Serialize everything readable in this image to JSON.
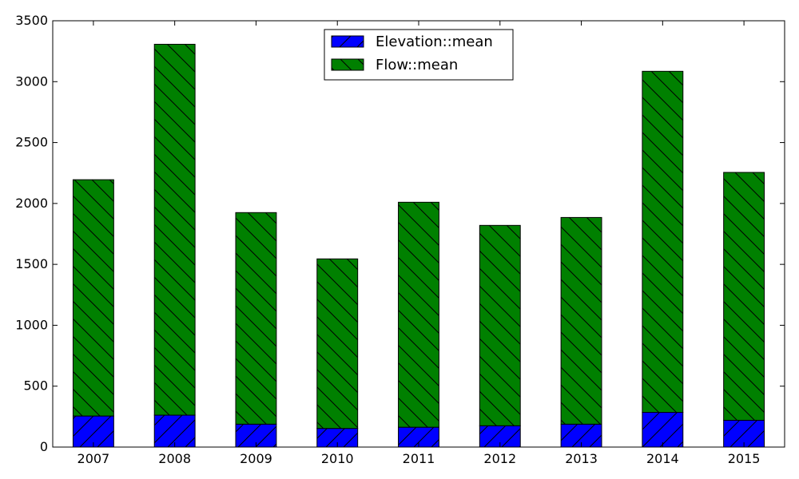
{
  "chart_data": {
    "type": "bar",
    "stacked": true,
    "categories": [
      "2007",
      "2008",
      "2009",
      "2010",
      "2011",
      "2012",
      "2013",
      "2014",
      "2015"
    ],
    "series": [
      {
        "name": "Elevation::mean",
        "color": "#0000ff",
        "hatch": "forward-diagonal",
        "values": [
          255,
          262,
          188,
          153,
          163,
          175,
          188,
          285,
          220
        ]
      },
      {
        "name": "Flow::mean",
        "color": "#008000",
        "hatch": "back-diagonal",
        "values": [
          1940,
          3045,
          1737,
          1392,
          1847,
          1645,
          1697,
          2800,
          2035
        ]
      }
    ],
    "yticks": [
      0,
      500,
      1000,
      1500,
      2000,
      2500,
      3000,
      3500
    ],
    "ylim": [
      0,
      3500
    ],
    "title": "",
    "xlabel": "",
    "ylabel": "",
    "grid": false,
    "legend_position": "top-center"
  }
}
